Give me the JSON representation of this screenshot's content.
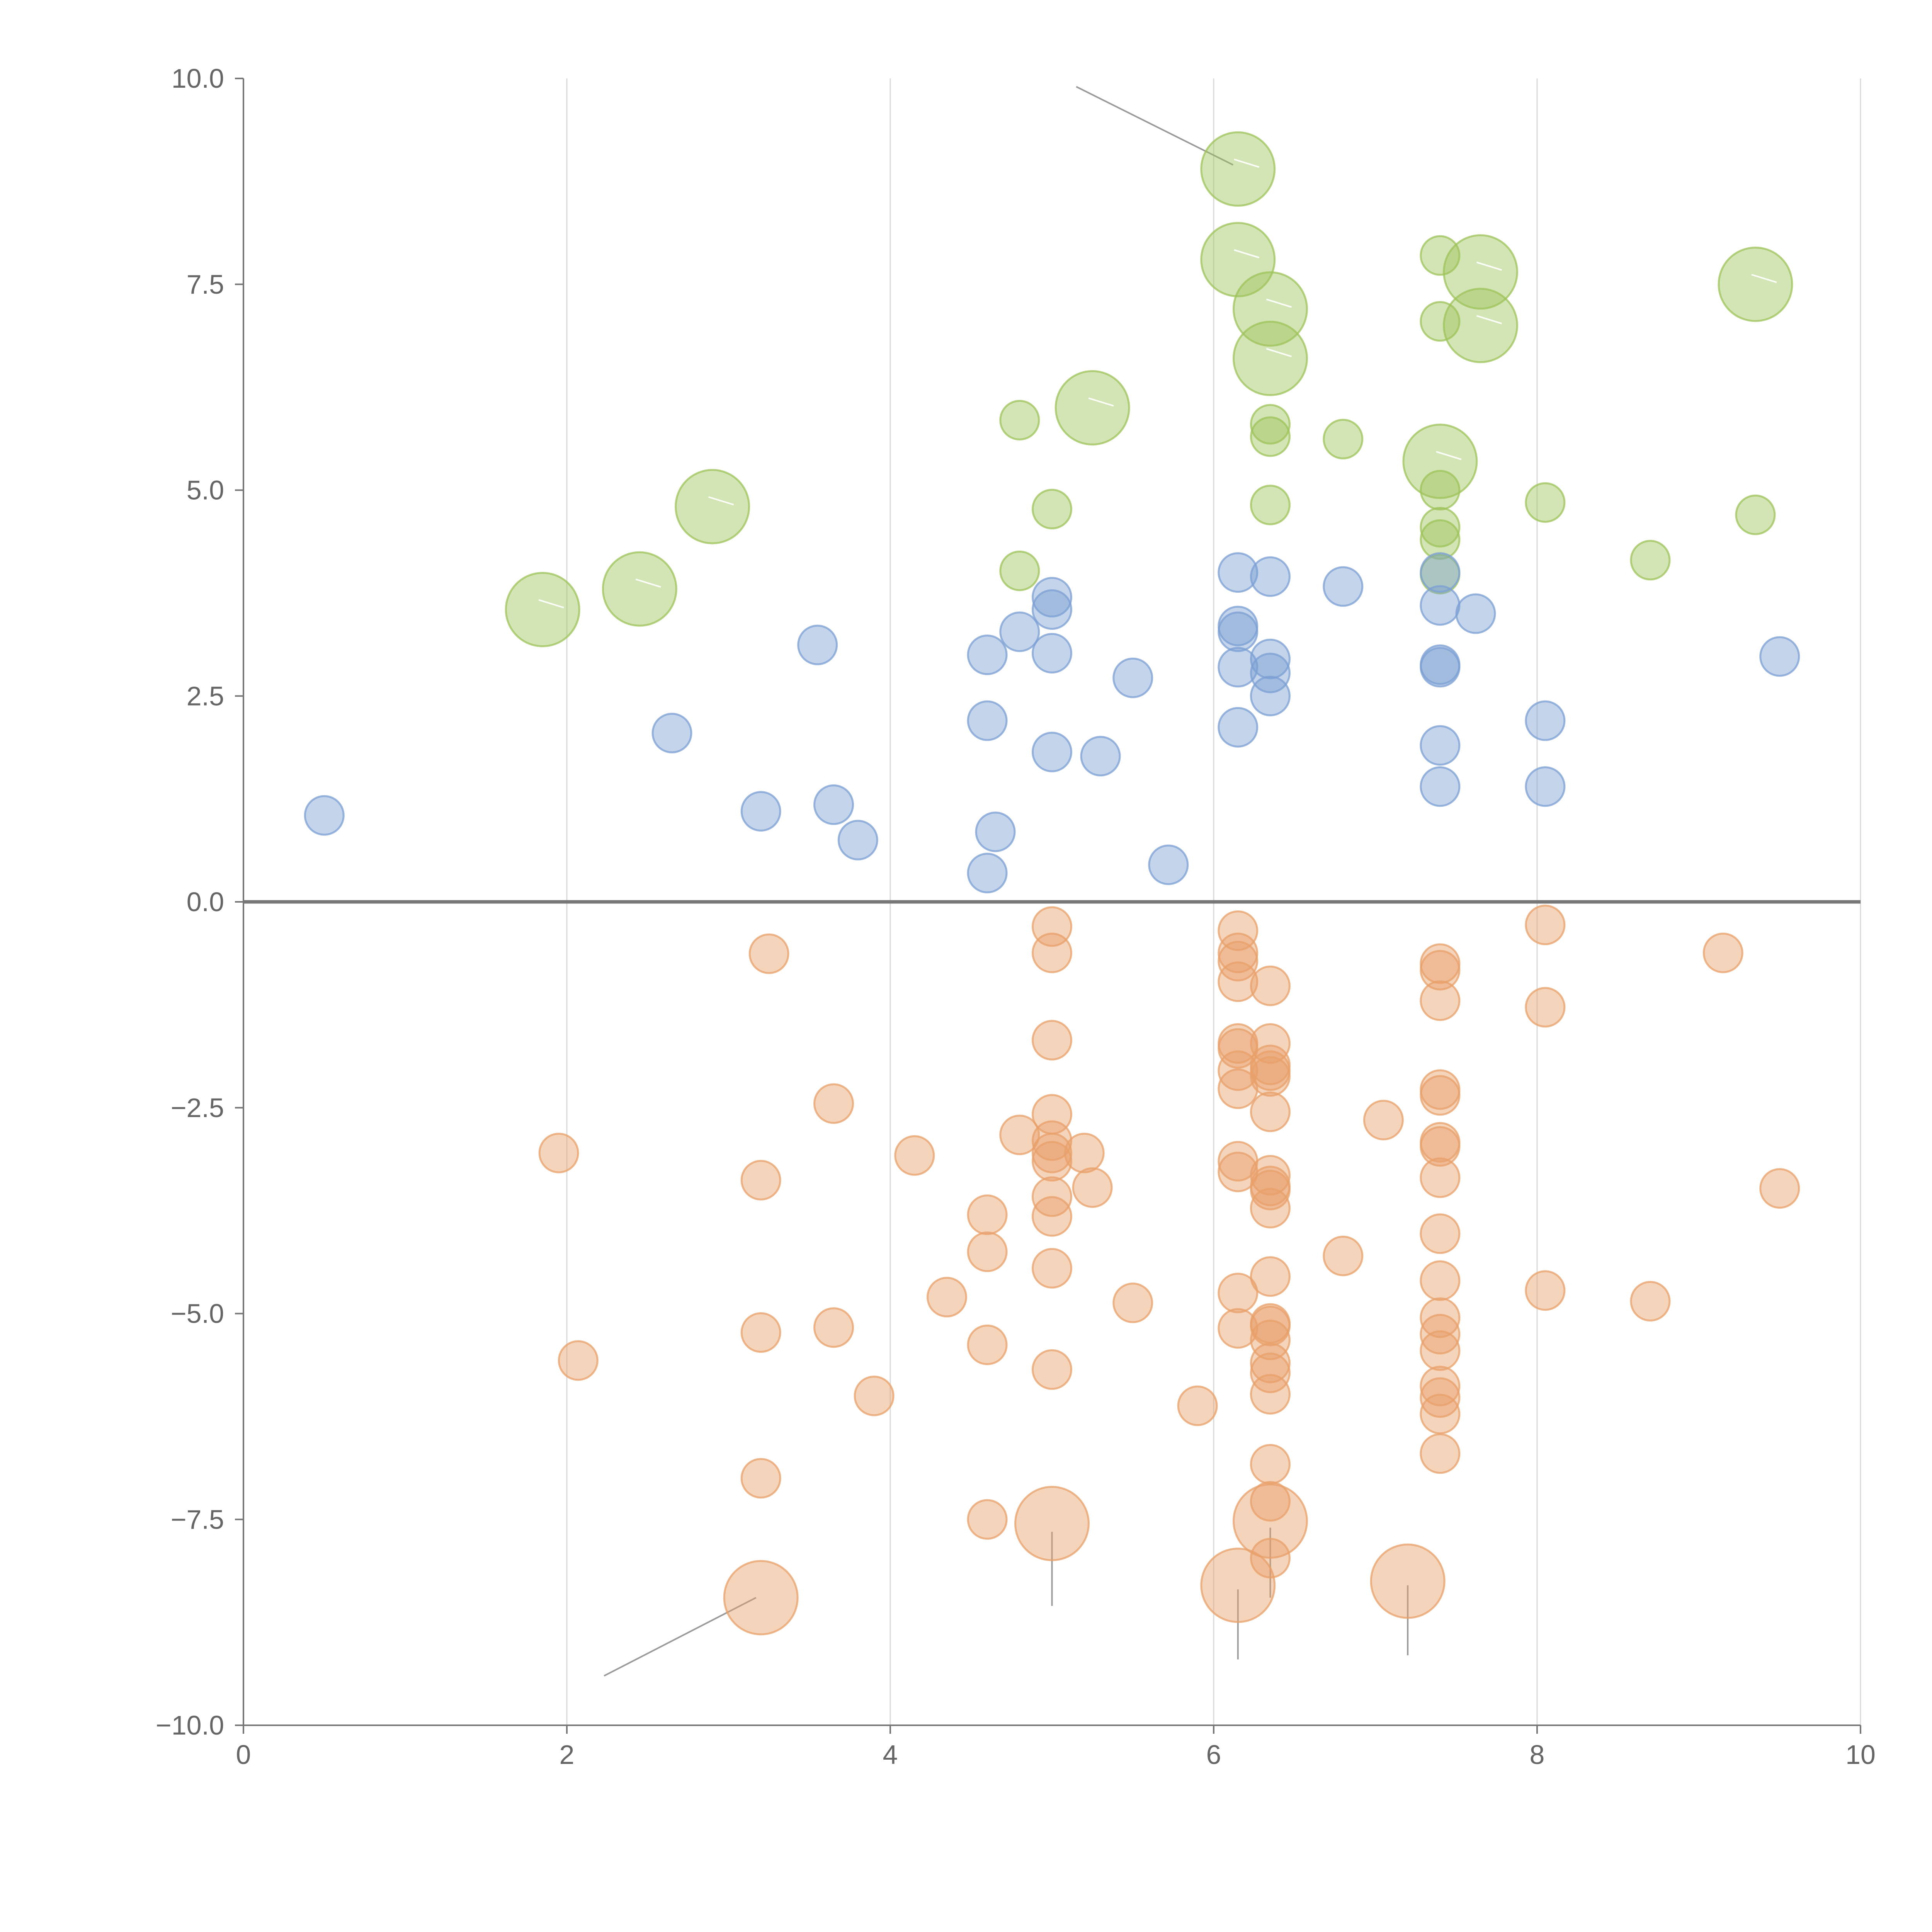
{
  "chart_data": {
    "type": "scatter",
    "title": "",
    "xlabel": "",
    "ylabel": "",
    "xlim": [
      0,
      10
    ],
    "ylim": [
      -10,
      10
    ],
    "grid": "vertical",
    "x_ticks": [
      0,
      2,
      4,
      6,
      8,
      10
    ],
    "x_tick_labels": [
      "0",
      "2",
      "4",
      "6",
      "8",
      "10"
    ],
    "y_ticks": [
      -10,
      -7.5,
      -5,
      -2.5,
      0,
      2.5,
      5,
      7.5,
      10
    ],
    "y_tick_labels": [
      "−10.0",
      "−7.5",
      "−5.0",
      "−2.5",
      "0.0",
      "2.5",
      "5.0",
      "7.5",
      "10.0"
    ],
    "series": [
      {
        "name": "green",
        "color": "#9dc35a",
        "points": [
          {
            "x": 6.15,
            "y": 8.9,
            "size": "large"
          },
          {
            "x": 6.15,
            "y": 7.8,
            "size": "large"
          },
          {
            "x": 6.35,
            "y": 7.2,
            "size": "large"
          },
          {
            "x": 6.35,
            "y": 6.6,
            "size": "large"
          },
          {
            "x": 7.4,
            "y": 7.85,
            "size": "small"
          },
          {
            "x": 7.65,
            "y": 7.65,
            "size": "large"
          },
          {
            "x": 7.4,
            "y": 7.05,
            "size": "small"
          },
          {
            "x": 7.65,
            "y": 7.0,
            "size": "large"
          },
          {
            "x": 9.35,
            "y": 7.5,
            "size": "large"
          },
          {
            "x": 5.25,
            "y": 6.0,
            "size": "large"
          },
          {
            "x": 4.8,
            "y": 5.85,
            "size": "small"
          },
          {
            "x": 6.35,
            "y": 5.8,
            "size": "small"
          },
          {
            "x": 6.35,
            "y": 5.65,
            "size": "small"
          },
          {
            "x": 6.8,
            "y": 5.62,
            "size": "small"
          },
          {
            "x": 7.4,
            "y": 5.35,
            "size": "large"
          },
          {
            "x": 2.9,
            "y": 4.8,
            "size": "large"
          },
          {
            "x": 5.0,
            "y": 4.77,
            "size": "small"
          },
          {
            "x": 6.35,
            "y": 4.82,
            "size": "small"
          },
          {
            "x": 7.4,
            "y": 5.0,
            "size": "small"
          },
          {
            "x": 7.4,
            "y": 4.55,
            "size": "small"
          },
          {
            "x": 7.4,
            "y": 4.4,
            "size": "small"
          },
          {
            "x": 8.05,
            "y": 4.85,
            "size": "small"
          },
          {
            "x": 9.35,
            "y": 4.7,
            "size": "small"
          },
          {
            "x": 8.7,
            "y": 4.15,
            "size": "small"
          },
          {
            "x": 4.8,
            "y": 4.02,
            "size": "small"
          },
          {
            "x": 7.4,
            "y": 3.98,
            "size": "small"
          },
          {
            "x": 2.45,
            "y": 3.8,
            "size": "large"
          },
          {
            "x": 1.85,
            "y": 3.55,
            "size": "large"
          }
        ]
      },
      {
        "name": "blue",
        "color": "#7b9fd3",
        "points": [
          {
            "x": 0.5,
            "y": 1.05
          },
          {
            "x": 2.65,
            "y": 2.05
          },
          {
            "x": 3.2,
            "y": 1.1
          },
          {
            "x": 3.55,
            "y": 3.12
          },
          {
            "x": 3.65,
            "y": 1.18
          },
          {
            "x": 3.8,
            "y": 0.75
          },
          {
            "x": 4.6,
            "y": 3.0
          },
          {
            "x": 4.6,
            "y": 2.2
          },
          {
            "x": 4.6,
            "y": 0.35
          },
          {
            "x": 4.65,
            "y": 0.85
          },
          {
            "x": 4.8,
            "y": 3.28
          },
          {
            "x": 5.0,
            "y": 3.7
          },
          {
            "x": 5.0,
            "y": 3.55
          },
          {
            "x": 5.0,
            "y": 3.02
          },
          {
            "x": 5.0,
            "y": 1.82
          },
          {
            "x": 5.3,
            "y": 1.77
          },
          {
            "x": 5.5,
            "y": 2.72
          },
          {
            "x": 5.72,
            "y": 0.45
          },
          {
            "x": 6.15,
            "y": 4.0
          },
          {
            "x": 6.15,
            "y": 3.35
          },
          {
            "x": 6.15,
            "y": 3.28
          },
          {
            "x": 6.15,
            "y": 2.85
          },
          {
            "x": 6.15,
            "y": 2.12
          },
          {
            "x": 6.35,
            "y": 3.95
          },
          {
            "x": 6.35,
            "y": 2.95
          },
          {
            "x": 6.35,
            "y": 2.78
          },
          {
            "x": 6.35,
            "y": 2.5
          },
          {
            "x": 6.8,
            "y": 3.83
          },
          {
            "x": 7.4,
            "y": 4.0
          },
          {
            "x": 7.4,
            "y": 3.6
          },
          {
            "x": 7.4,
            "y": 2.88
          },
          {
            "x": 7.4,
            "y": 2.85
          },
          {
            "x": 7.4,
            "y": 1.9
          },
          {
            "x": 7.4,
            "y": 1.4
          },
          {
            "x": 7.62,
            "y": 3.5
          },
          {
            "x": 8.05,
            "y": 2.2
          },
          {
            "x": 8.05,
            "y": 1.4
          },
          {
            "x": 9.5,
            "y": 2.98
          }
        ]
      },
      {
        "name": "orange",
        "color": "#e8a06a",
        "points": [
          {
            "x": 1.95,
            "y": -3.05,
            "size": "small"
          },
          {
            "x": 2.07,
            "y": -5.57,
            "size": "small"
          },
          {
            "x": 3.2,
            "y": -3.38,
            "size": "small"
          },
          {
            "x": 3.2,
            "y": -5.23,
            "size": "small"
          },
          {
            "x": 3.2,
            "y": -7.0,
            "size": "small"
          },
          {
            "x": 3.2,
            "y": -8.45,
            "size": "large"
          },
          {
            "x": 3.25,
            "y": -0.63,
            "size": "small"
          },
          {
            "x": 3.65,
            "y": -2.45,
            "size": "small"
          },
          {
            "x": 3.65,
            "y": -5.17,
            "size": "small"
          },
          {
            "x": 3.9,
            "y": -6.0,
            "size": "small"
          },
          {
            "x": 4.15,
            "y": -3.08,
            "size": "small"
          },
          {
            "x": 4.35,
            "y": -4.8,
            "size": "small"
          },
          {
            "x": 4.6,
            "y": -3.8,
            "size": "small"
          },
          {
            "x": 4.6,
            "y": -4.25,
            "size": "small"
          },
          {
            "x": 4.6,
            "y": -5.38,
            "size": "small"
          },
          {
            "x": 4.6,
            "y": -7.5,
            "size": "small"
          },
          {
            "x": 4.8,
            "y": -2.83,
            "size": "small"
          },
          {
            "x": 5.0,
            "y": -0.3,
            "size": "small"
          },
          {
            "x": 5.0,
            "y": -0.62,
            "size": "small"
          },
          {
            "x": 5.0,
            "y": -1.68,
            "size": "small"
          },
          {
            "x": 5.0,
            "y": -2.58,
            "size": "small"
          },
          {
            "x": 5.0,
            "y": -2.9,
            "size": "small"
          },
          {
            "x": 5.0,
            "y": -3.05,
            "size": "small"
          },
          {
            "x": 5.0,
            "y": -3.15,
            "size": "small"
          },
          {
            "x": 5.0,
            "y": -3.58,
            "size": "small"
          },
          {
            "x": 5.0,
            "y": -3.82,
            "size": "small"
          },
          {
            "x": 5.0,
            "y": -4.45,
            "size": "small"
          },
          {
            "x": 5.0,
            "y": -5.68,
            "size": "small"
          },
          {
            "x": 5.0,
            "y": -7.55,
            "size": "large"
          },
          {
            "x": 5.2,
            "y": -3.05,
            "size": "small"
          },
          {
            "x": 5.25,
            "y": -3.47,
            "size": "small"
          },
          {
            "x": 5.5,
            "y": -4.87,
            "size": "small"
          },
          {
            "x": 5.9,
            "y": -6.12,
            "size": "small"
          },
          {
            "x": 6.15,
            "y": -0.35,
            "size": "small"
          },
          {
            "x": 6.15,
            "y": -0.62,
            "size": "small"
          },
          {
            "x": 6.15,
            "y": -0.72,
            "size": "small"
          },
          {
            "x": 6.15,
            "y": -0.97,
            "size": "small"
          },
          {
            "x": 6.15,
            "y": -1.72,
            "size": "small"
          },
          {
            "x": 6.15,
            "y": -1.78,
            "size": "small"
          },
          {
            "x": 6.15,
            "y": -2.05,
            "size": "small"
          },
          {
            "x": 6.15,
            "y": -2.27,
            "size": "small"
          },
          {
            "x": 6.15,
            "y": -3.15,
            "size": "small"
          },
          {
            "x": 6.15,
            "y": -3.28,
            "size": "small"
          },
          {
            "x": 6.15,
            "y": -4.75,
            "size": "small"
          },
          {
            "x": 6.15,
            "y": -5.18,
            "size": "small"
          },
          {
            "x": 6.15,
            "y": -8.3,
            "size": "large"
          },
          {
            "x": 6.35,
            "y": -1.02,
            "size": "small"
          },
          {
            "x": 6.35,
            "y": -1.72,
            "size": "small"
          },
          {
            "x": 6.35,
            "y": -1.98,
            "size": "small"
          },
          {
            "x": 6.35,
            "y": -2.05,
            "size": "small"
          },
          {
            "x": 6.35,
            "y": -2.12,
            "size": "small"
          },
          {
            "x": 6.35,
            "y": -2.55,
            "size": "small"
          },
          {
            "x": 6.35,
            "y": -3.32,
            "size": "small"
          },
          {
            "x": 6.35,
            "y": -3.45,
            "size": "small"
          },
          {
            "x": 6.35,
            "y": -3.5,
            "size": "small"
          },
          {
            "x": 6.35,
            "y": -3.72,
            "size": "small"
          },
          {
            "x": 6.35,
            "y": -4.55,
            "size": "small"
          },
          {
            "x": 6.35,
            "y": -5.12,
            "size": "small"
          },
          {
            "x": 6.35,
            "y": -5.15,
            "size": "small"
          },
          {
            "x": 6.35,
            "y": -5.32,
            "size": "small"
          },
          {
            "x": 6.35,
            "y": -5.6,
            "size": "small"
          },
          {
            "x": 6.35,
            "y": -5.72,
            "size": "small"
          },
          {
            "x": 6.35,
            "y": -5.98,
            "size": "small"
          },
          {
            "x": 6.35,
            "y": -6.83,
            "size": "small"
          },
          {
            "x": 6.35,
            "y": -7.28,
            "size": "small"
          },
          {
            "x": 6.35,
            "y": -7.52,
            "size": "large"
          },
          {
            "x": 6.35,
            "y": -7.97,
            "size": "small"
          },
          {
            "x": 6.8,
            "y": -4.3,
            "size": "small"
          },
          {
            "x": 7.05,
            "y": -2.65,
            "size": "small"
          },
          {
            "x": 7.2,
            "y": -8.25,
            "size": "large"
          },
          {
            "x": 7.4,
            "y": -0.75,
            "size": "small"
          },
          {
            "x": 7.4,
            "y": -0.83,
            "size": "small"
          },
          {
            "x": 7.4,
            "y": -1.2,
            "size": "small"
          },
          {
            "x": 7.4,
            "y": -2.28,
            "size": "small"
          },
          {
            "x": 7.4,
            "y": -2.35,
            "size": "small"
          },
          {
            "x": 7.4,
            "y": -2.92,
            "size": "small"
          },
          {
            "x": 7.4,
            "y": -2.97,
            "size": "small"
          },
          {
            "x": 7.4,
            "y": -3.35,
            "size": "small"
          },
          {
            "x": 7.4,
            "y": -4.03,
            "size": "small"
          },
          {
            "x": 7.4,
            "y": -4.6,
            "size": "small"
          },
          {
            "x": 7.4,
            "y": -5.05,
            "size": "small"
          },
          {
            "x": 7.4,
            "y": -5.25,
            "size": "small"
          },
          {
            "x": 7.4,
            "y": -5.45,
            "size": "small"
          },
          {
            "x": 7.4,
            "y": -5.88,
            "size": "small"
          },
          {
            "x": 7.4,
            "y": -6.02,
            "size": "small"
          },
          {
            "x": 7.4,
            "y": -6.22,
            "size": "small"
          },
          {
            "x": 7.4,
            "y": -6.7,
            "size": "small"
          },
          {
            "x": 8.05,
            "y": -0.28,
            "size": "small"
          },
          {
            "x": 8.05,
            "y": -1.28,
            "size": "small"
          },
          {
            "x": 8.05,
            "y": -4.72,
            "size": "small"
          },
          {
            "x": 8.7,
            "y": -4.85,
            "size": "small"
          },
          {
            "x": 9.15,
            "y": -0.62,
            "size": "small"
          },
          {
            "x": 9.5,
            "y": -3.48,
            "size": "small"
          }
        ]
      }
    ],
    "annotation_leaders": [
      {
        "from": {
          "x": 5.15,
          "y": 9.9
        },
        "to": {
          "x": 6.12,
          "y": 8.95
        }
      },
      {
        "from": {
          "x": 2.23,
          "y": -9.4
        },
        "to": {
          "x": 3.17,
          "y": -8.45
        }
      },
      {
        "from": {
          "x": 5.0,
          "y": -7.65
        },
        "to": {
          "x": 5.0,
          "y": -8.55
        }
      },
      {
        "from": {
          "x": 6.15,
          "y": -8.35
        },
        "to": {
          "x": 6.15,
          "y": -9.2
        }
      },
      {
        "from": {
          "x": 6.35,
          "y": -7.6
        },
        "to": {
          "x": 6.35,
          "y": -8.45
        }
      },
      {
        "from": {
          "x": 7.2,
          "y": -8.3
        },
        "to": {
          "x": 7.2,
          "y": -9.15
        }
      }
    ]
  }
}
